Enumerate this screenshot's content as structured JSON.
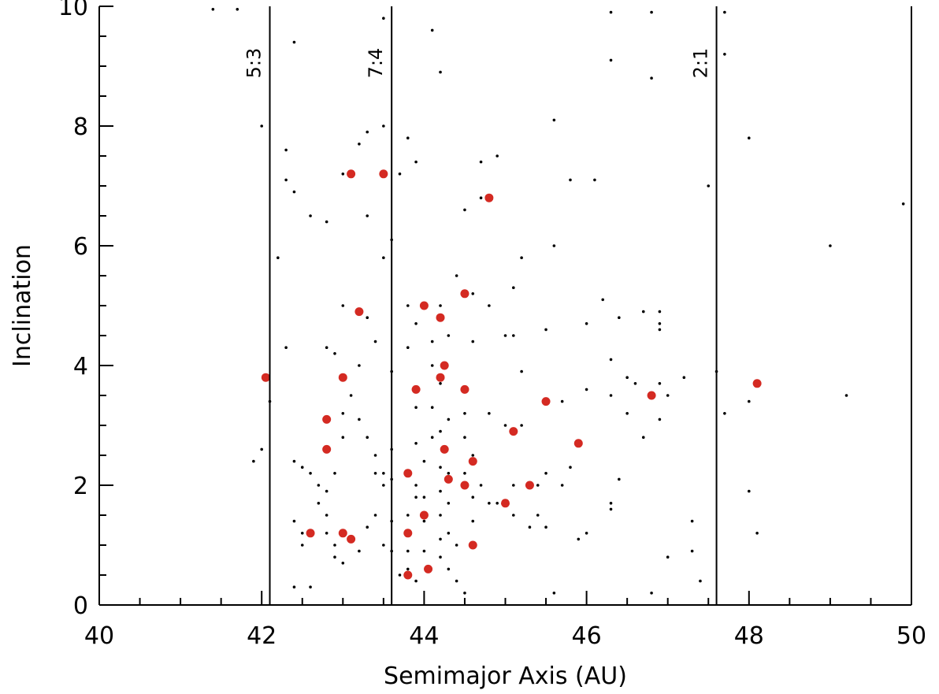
{
  "chart_data": {
    "type": "scatter",
    "title": "",
    "xlabel": "Semimajor Axis (AU)",
    "ylabel": "Inclination",
    "xlim": [
      40,
      50
    ],
    "ylim": [
      0,
      10
    ],
    "xticks": [
      40,
      42,
      44,
      46,
      48,
      50
    ],
    "yticks": [
      0,
      2,
      4,
      6,
      8,
      10
    ],
    "xtick_labels": [
      "40",
      "42",
      "44",
      "46",
      "48",
      "50"
    ],
    "ytick_labels": [
      "0",
      "2",
      "4",
      "6",
      "8",
      "10"
    ],
    "grid": false,
    "colors": {
      "axis": "#000000",
      "background_points": "#000000",
      "highlighted_points": "#d42a22"
    },
    "resonances": [
      {
        "label": "5:3",
        "a": 42.1
      },
      {
        "label": "7:4",
        "a": 43.6
      },
      {
        "label": "2:1",
        "a": 47.6
      }
    ],
    "series": [
      {
        "marker": "dot",
        "points": [
          [
            41.4,
            9.95
          ],
          [
            41.7,
            9.95
          ],
          [
            42.0,
            8.0
          ],
          [
            41.9,
            2.4
          ],
          [
            42.0,
            2.6
          ],
          [
            42.1,
            3.4
          ],
          [
            42.4,
            9.4
          ],
          [
            42.3,
            7.6
          ],
          [
            42.3,
            7.1
          ],
          [
            42.4,
            6.9
          ],
          [
            42.2,
            5.8
          ],
          [
            42.3,
            4.3
          ],
          [
            42.6,
            6.5
          ],
          [
            42.8,
            6.4
          ],
          [
            42.4,
            2.4
          ],
          [
            42.5,
            2.3
          ],
          [
            42.6,
            2.2
          ],
          [
            42.7,
            2.0
          ],
          [
            42.7,
            1.7
          ],
          [
            42.8,
            1.5
          ],
          [
            42.8,
            1.2
          ],
          [
            42.9,
            1.0
          ],
          [
            42.9,
            0.8
          ],
          [
            43.0,
            0.7
          ],
          [
            42.4,
            1.4
          ],
          [
            42.5,
            1.2
          ],
          [
            42.5,
            1.0
          ],
          [
            42.4,
            0.3
          ],
          [
            42.6,
            0.3
          ],
          [
            42.8,
            1.9
          ],
          [
            42.9,
            2.2
          ],
          [
            43.0,
            2.8
          ],
          [
            43.0,
            3.2
          ],
          [
            43.1,
            3.5
          ],
          [
            42.8,
            4.3
          ],
          [
            42.9,
            4.2
          ],
          [
            43.0,
            5.0
          ],
          [
            43.0,
            7.2
          ],
          [
            43.2,
            7.7
          ],
          [
            43.3,
            7.9
          ],
          [
            43.3,
            6.5
          ],
          [
            43.3,
            4.8
          ],
          [
            43.2,
            4.0
          ],
          [
            43.2,
            3.1
          ],
          [
            43.3,
            2.8
          ],
          [
            43.4,
            2.5
          ],
          [
            43.4,
            2.2
          ],
          [
            43.4,
            1.5
          ],
          [
            43.3,
            1.3
          ],
          [
            43.2,
            0.9
          ],
          [
            43.5,
            2.2
          ],
          [
            43.5,
            2.0
          ],
          [
            43.5,
            1.0
          ],
          [
            43.4,
            4.4
          ],
          [
            43.5,
            5.8
          ],
          [
            43.5,
            8.0
          ],
          [
            43.5,
            9.8
          ],
          [
            43.6,
            6.1
          ],
          [
            43.6,
            3.9
          ],
          [
            43.6,
            2.6
          ],
          [
            43.6,
            2.1
          ],
          [
            43.6,
            1.4
          ],
          [
            43.6,
            0.9
          ],
          [
            43.7,
            0.5
          ],
          [
            43.8,
            7.8
          ],
          [
            43.7,
            7.2
          ],
          [
            43.9,
            7.4
          ],
          [
            43.8,
            5.0
          ],
          [
            43.9,
            4.7
          ],
          [
            43.8,
            4.3
          ],
          [
            43.9,
            3.3
          ],
          [
            43.9,
            2.7
          ],
          [
            43.9,
            2.0
          ],
          [
            43.9,
            1.8
          ],
          [
            43.8,
            1.5
          ],
          [
            43.8,
            1.2
          ],
          [
            43.8,
            0.9
          ],
          [
            43.8,
            0.6
          ],
          [
            43.9,
            0.4
          ],
          [
            44.0,
            0.9
          ],
          [
            44.0,
            1.4
          ],
          [
            44.0,
            1.8
          ],
          [
            44.0,
            2.4
          ],
          [
            44.1,
            2.8
          ],
          [
            44.1,
            3.3
          ],
          [
            44.1,
            4.0
          ],
          [
            44.1,
            4.4
          ],
          [
            44.1,
            9.6
          ],
          [
            44.2,
            8.9
          ],
          [
            44.2,
            5.0
          ],
          [
            44.2,
            3.7
          ],
          [
            44.2,
            2.9
          ],
          [
            44.2,
            2.3
          ],
          [
            44.2,
            1.9
          ],
          [
            44.2,
            1.5
          ],
          [
            44.2,
            1.1
          ],
          [
            44.2,
            0.8
          ],
          [
            44.3,
            0.6
          ],
          [
            44.3,
            1.2
          ],
          [
            44.3,
            1.7
          ],
          [
            44.3,
            2.2
          ],
          [
            44.3,
            3.1
          ],
          [
            44.3,
            4.5
          ],
          [
            44.4,
            5.5
          ],
          [
            44.4,
            1.0
          ],
          [
            44.4,
            0.4
          ],
          [
            44.5,
            0.2
          ],
          [
            44.5,
            2.2
          ],
          [
            44.5,
            2.8
          ],
          [
            44.5,
            3.2
          ],
          [
            44.5,
            6.6
          ],
          [
            44.6,
            2.5
          ],
          [
            44.6,
            1.8
          ],
          [
            44.6,
            1.4
          ],
          [
            44.6,
            5.2
          ],
          [
            44.7,
            7.4
          ],
          [
            44.7,
            6.8
          ],
          [
            44.6,
            4.4
          ],
          [
            44.7,
            2.0
          ],
          [
            44.8,
            1.7
          ],
          [
            44.8,
            3.2
          ],
          [
            44.8,
            5.0
          ],
          [
            44.9,
            7.5
          ],
          [
            44.9,
            1.7
          ],
          [
            45.0,
            3.0
          ],
          [
            45.0,
            4.5
          ],
          [
            45.1,
            5.3
          ],
          [
            45.1,
            4.5
          ],
          [
            45.1,
            2.0
          ],
          [
            45.1,
            1.5
          ],
          [
            45.2,
            3.9
          ],
          [
            45.2,
            3.0
          ],
          [
            45.2,
            5.8
          ],
          [
            45.3,
            1.3
          ],
          [
            45.4,
            2.0
          ],
          [
            45.4,
            1.5
          ],
          [
            45.5,
            1.3
          ],
          [
            45.5,
            4.6
          ],
          [
            45.5,
            2.2
          ],
          [
            45.6,
            8.1
          ],
          [
            45.6,
            6.0
          ],
          [
            45.6,
            0.2
          ],
          [
            45.7,
            2.0
          ],
          [
            45.7,
            3.4
          ],
          [
            45.8,
            7.1
          ],
          [
            45.8,
            2.3
          ],
          [
            45.9,
            1.1
          ],
          [
            46.0,
            1.2
          ],
          [
            46.0,
            4.7
          ],
          [
            46.0,
            3.6
          ],
          [
            46.1,
            7.1
          ],
          [
            46.2,
            5.1
          ],
          [
            46.3,
            9.9
          ],
          [
            46.3,
            9.1
          ],
          [
            46.3,
            4.1
          ],
          [
            46.3,
            3.5
          ],
          [
            46.3,
            1.7
          ],
          [
            46.3,
            1.6
          ],
          [
            46.4,
            4.8
          ],
          [
            46.4,
            2.1
          ],
          [
            46.5,
            3.2
          ],
          [
            46.5,
            3.8
          ],
          [
            46.6,
            3.7
          ],
          [
            46.7,
            4.9
          ],
          [
            46.7,
            2.8
          ],
          [
            46.8,
            0.2
          ],
          [
            46.8,
            9.9
          ],
          [
            46.8,
            8.8
          ],
          [
            46.9,
            4.9
          ],
          [
            46.9,
            4.7
          ],
          [
            46.9,
            4.6
          ],
          [
            46.9,
            3.7
          ],
          [
            47.0,
            3.5
          ],
          [
            46.9,
            3.1
          ],
          [
            47.0,
            0.8
          ],
          [
            47.2,
            3.8
          ],
          [
            47.3,
            1.4
          ],
          [
            47.3,
            0.9
          ],
          [
            47.4,
            0.4
          ],
          [
            47.5,
            7.0
          ],
          [
            47.6,
            3.9
          ],
          [
            47.7,
            9.9
          ],
          [
            47.7,
            9.2
          ],
          [
            47.7,
            3.2
          ],
          [
            48.0,
            7.8
          ],
          [
            48.0,
            3.4
          ],
          [
            48.0,
            1.9
          ],
          [
            48.1,
            1.2
          ],
          [
            49.0,
            6.0
          ],
          [
            49.2,
            3.5
          ],
          [
            49.9,
            6.7
          ]
        ]
      },
      {
        "marker": "filled-circle",
        "color": "#d42a22",
        "points": [
          [
            42.05,
            3.8
          ],
          [
            42.6,
            1.2
          ],
          [
            42.8,
            3.1
          ],
          [
            42.8,
            2.6
          ],
          [
            43.0,
            3.8
          ],
          [
            43.0,
            1.2
          ],
          [
            43.1,
            1.1
          ],
          [
            43.1,
            7.2
          ],
          [
            43.2,
            4.9
          ],
          [
            43.5,
            7.2
          ],
          [
            43.8,
            2.2
          ],
          [
            43.8,
            1.2
          ],
          [
            43.8,
            0.5
          ],
          [
            43.9,
            3.6
          ],
          [
            44.0,
            5.0
          ],
          [
            44.0,
            1.5
          ],
          [
            44.05,
            0.6
          ],
          [
            44.2,
            4.8
          ],
          [
            44.2,
            3.8
          ],
          [
            44.25,
            4.0
          ],
          [
            44.25,
            2.6
          ],
          [
            44.3,
            2.1
          ],
          [
            44.5,
            5.2
          ],
          [
            44.5,
            3.6
          ],
          [
            44.5,
            2.0
          ],
          [
            44.6,
            1.0
          ],
          [
            44.6,
            2.4
          ],
          [
            44.8,
            6.8
          ],
          [
            45.0,
            1.7
          ],
          [
            45.1,
            2.9
          ],
          [
            45.3,
            2.0
          ],
          [
            45.5,
            3.4
          ],
          [
            45.9,
            2.7
          ],
          [
            46.8,
            3.5
          ],
          [
            48.1,
            3.7
          ]
        ]
      }
    ]
  }
}
